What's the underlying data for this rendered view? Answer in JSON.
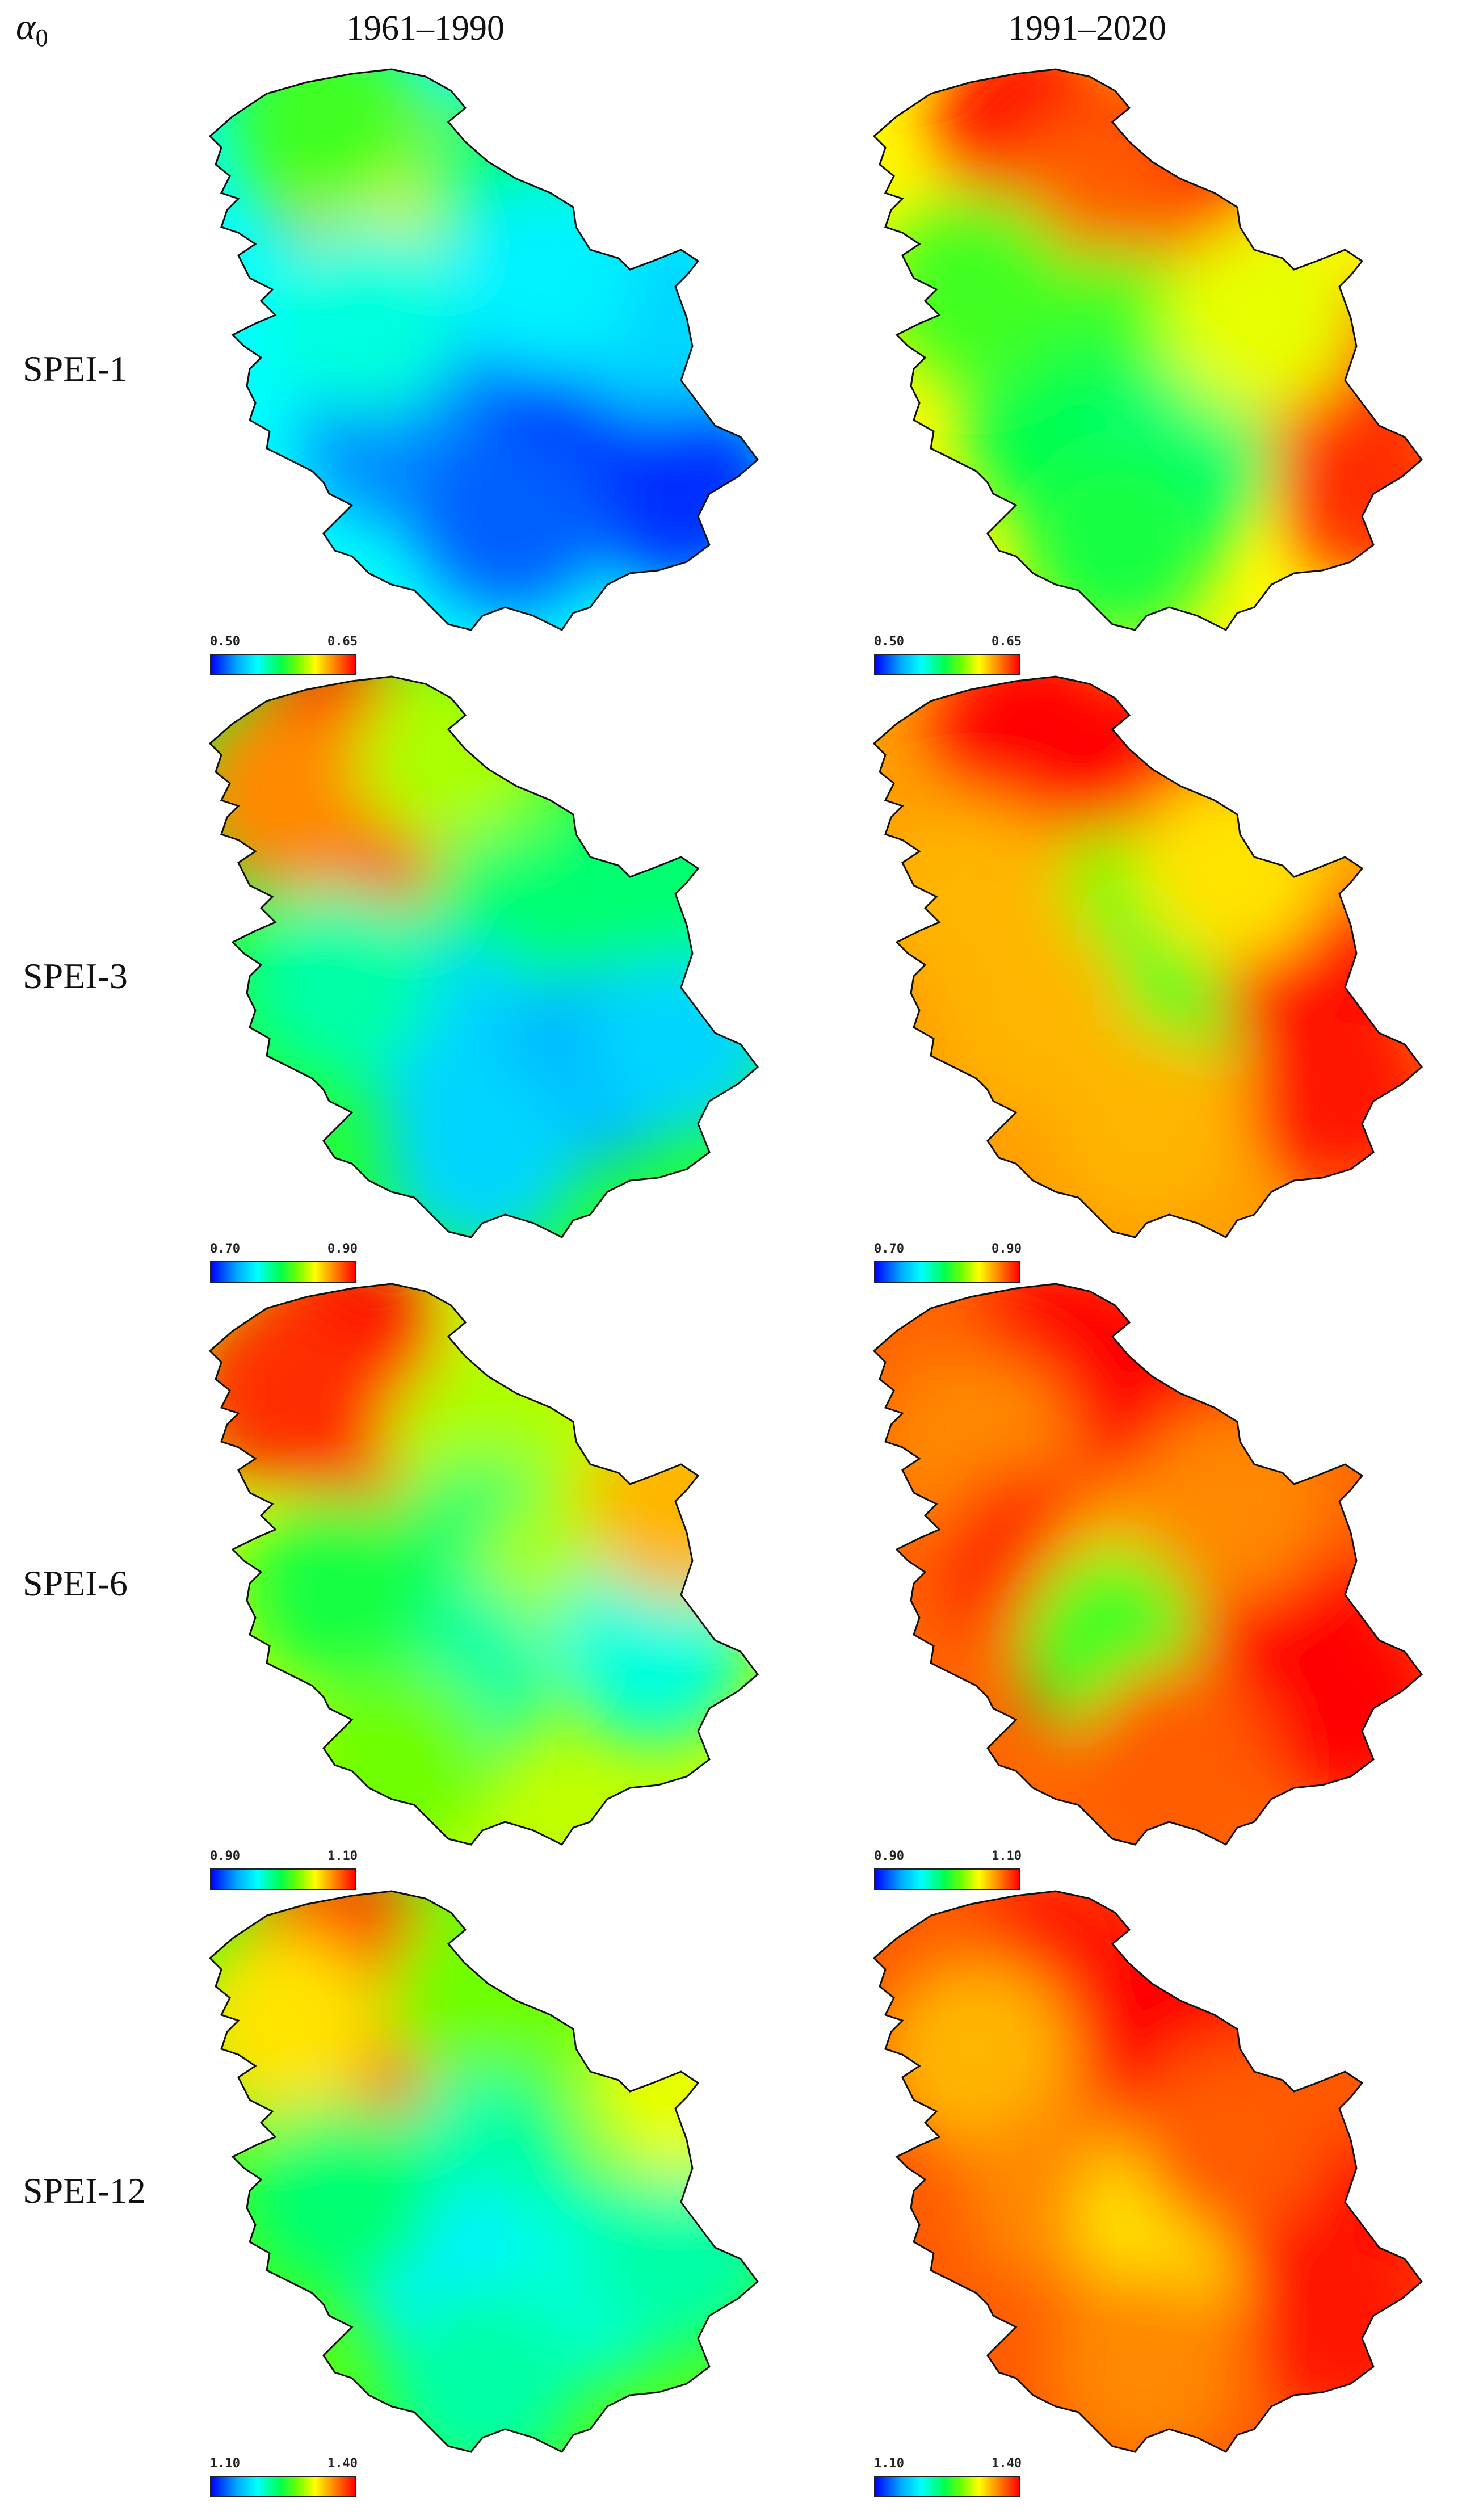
{
  "figure": {
    "corner_symbol": "α",
    "corner_subscript": "0",
    "columns": [
      "1961–1990",
      "1991–2020"
    ],
    "rows": [
      {
        "label": "SPEI-1",
        "legend": {
          "min": "0.50",
          "max": "0.65"
        },
        "panels": [
          {
            "period": "1961–1990",
            "spots": [
              {
                "rx": 0.28,
                "ry": 0.18,
                "v": 0.85
              },
              {
                "rx": 0.4,
                "ry": 0.28,
                "v": 0.75
              },
              {
                "rx": 0.22,
                "ry": 0.1,
                "v": 0.55
              },
              {
                "rx": 0.55,
                "ry": 0.2,
                "v": 0.45
              },
              {
                "rx": 0.5,
                "ry": 0.55,
                "v": 0.05
              },
              {
                "rx": 0.7,
                "ry": 0.6,
                "v": 0.02
              },
              {
                "rx": 0.85,
                "ry": 0.75,
                "v": 0.05
              },
              {
                "rx": 0.35,
                "ry": 0.65,
                "v": 0.15
              },
              {
                "rx": 0.55,
                "ry": 0.8,
                "v": 0.1
              },
              {
                "rx": 0.3,
                "ry": 0.45,
                "v": 0.35
              },
              {
                "rx": 0.8,
                "ry": 0.45,
                "v": 0.25
              },
              {
                "rx": 0.6,
                "ry": 0.38,
                "v": 0.3
              }
            ]
          },
          {
            "period": "1991–2020",
            "spots": [
              {
                "rx": 0.3,
                "ry": 0.12,
                "v": 1.0
              },
              {
                "rx": 0.55,
                "ry": 0.18,
                "v": 0.95
              },
              {
                "rx": 0.4,
                "ry": 0.25,
                "v": 0.9
              },
              {
                "rx": 0.45,
                "ry": 0.5,
                "v": 0.55
              },
              {
                "rx": 0.35,
                "ry": 0.65,
                "v": 0.48
              },
              {
                "rx": 0.55,
                "ry": 0.7,
                "v": 0.45
              },
              {
                "rx": 0.85,
                "ry": 0.55,
                "v": 0.95
              },
              {
                "rx": 0.9,
                "ry": 0.75,
                "v": 0.95
              },
              {
                "rx": 0.7,
                "ry": 0.45,
                "v": 0.7
              },
              {
                "rx": 0.45,
                "ry": 0.85,
                "v": 0.5
              },
              {
                "rx": 0.2,
                "ry": 0.4,
                "v": 0.55
              }
            ]
          }
        ]
      },
      {
        "label": "SPEI-3",
        "legend": {
          "min": "0.70",
          "max": "0.90"
        },
        "panels": [
          {
            "period": "1961–1990",
            "spots": [
              {
                "rx": 0.25,
                "ry": 0.12,
                "v": 1.0
              },
              {
                "rx": 0.3,
                "ry": 0.3,
                "v": 0.95
              },
              {
                "rx": 0.15,
                "ry": 0.22,
                "v": 0.85
              },
              {
                "rx": 0.45,
                "ry": 0.15,
                "v": 0.65
              },
              {
                "rx": 0.55,
                "ry": 0.45,
                "v": 0.45
              },
              {
                "rx": 0.45,
                "ry": 0.65,
                "v": 0.25
              },
              {
                "rx": 0.7,
                "ry": 0.7,
                "v": 0.2
              },
              {
                "rx": 0.85,
                "ry": 0.65,
                "v": 0.25
              },
              {
                "rx": 0.5,
                "ry": 0.85,
                "v": 0.25
              },
              {
                "rx": 0.25,
                "ry": 0.55,
                "v": 0.4
              },
              {
                "rx": 0.8,
                "ry": 0.35,
                "v": 0.45
              }
            ]
          },
          {
            "period": "1991–2020",
            "spots": [
              {
                "rx": 0.3,
                "ry": 0.12,
                "v": 1.0
              },
              {
                "rx": 0.55,
                "ry": 0.18,
                "v": 1.0
              },
              {
                "rx": 0.45,
                "ry": 0.45,
                "v": 0.6
              },
              {
                "rx": 0.55,
                "ry": 0.55,
                "v": 0.55
              },
              {
                "rx": 0.8,
                "ry": 0.55,
                "v": 1.0
              },
              {
                "rx": 0.85,
                "ry": 0.75,
                "v": 0.98
              },
              {
                "rx": 0.3,
                "ry": 0.6,
                "v": 0.8
              },
              {
                "rx": 0.5,
                "ry": 0.8,
                "v": 0.8
              },
              {
                "rx": 0.2,
                "ry": 0.4,
                "v": 0.8
              },
              {
                "rx": 0.65,
                "ry": 0.35,
                "v": 0.75
              }
            ]
          }
        ]
      },
      {
        "label": "SPEI-6",
        "legend": {
          "min": "0.90",
          "max": "1.10"
        },
        "panels": [
          {
            "period": "1961–1990",
            "spots": [
              {
                "rx": 0.25,
                "ry": 0.12,
                "v": 1.0
              },
              {
                "rx": 0.3,
                "ry": 0.25,
                "v": 1.0
              },
              {
                "rx": 0.15,
                "ry": 0.2,
                "v": 0.95
              },
              {
                "rx": 0.5,
                "ry": 0.3,
                "v": 0.65
              },
              {
                "rx": 0.5,
                "ry": 0.5,
                "v": 0.45
              },
              {
                "rx": 0.65,
                "ry": 0.55,
                "v": 0.65
              },
              {
                "rx": 0.8,
                "ry": 0.65,
                "v": 0.35
              },
              {
                "rx": 0.45,
                "ry": 0.7,
                "v": 0.4
              },
              {
                "rx": 0.35,
                "ry": 0.85,
                "v": 0.6
              },
              {
                "rx": 0.85,
                "ry": 0.4,
                "v": 0.8
              },
              {
                "rx": 0.25,
                "ry": 0.55,
                "v": 0.5
              }
            ]
          },
          {
            "period": "1991–2020",
            "spots": [
              {
                "rx": 0.35,
                "ry": 0.15,
                "v": 1.0
              },
              {
                "rx": 0.55,
                "ry": 0.2,
                "v": 1.0
              },
              {
                "rx": 0.2,
                "ry": 0.3,
                "v": 0.85
              },
              {
                "rx": 0.3,
                "ry": 0.5,
                "v": 0.95
              },
              {
                "rx": 0.5,
                "ry": 0.55,
                "v": 0.8
              },
              {
                "rx": 0.45,
                "ry": 0.65,
                "v": 0.55
              },
              {
                "rx": 0.75,
                "ry": 0.6,
                "v": 1.0
              },
              {
                "rx": 0.85,
                "ry": 0.75,
                "v": 1.0
              },
              {
                "rx": 0.55,
                "ry": 0.85,
                "v": 0.9
              },
              {
                "rx": 0.65,
                "ry": 0.4,
                "v": 0.85
              }
            ]
          }
        ]
      },
      {
        "label": "SPEI-12",
        "legend": {
          "min": "1.10",
          "max": "1.40"
        },
        "panels": [
          {
            "period": "1961–1990",
            "spots": [
              {
                "rx": 0.25,
                "ry": 0.12,
                "v": 0.92
              },
              {
                "rx": 0.32,
                "ry": 0.25,
                "v": 0.98
              },
              {
                "rx": 0.15,
                "ry": 0.25,
                "v": 0.75
              },
              {
                "rx": 0.5,
                "ry": 0.2,
                "v": 0.6
              },
              {
                "rx": 0.5,
                "ry": 0.5,
                "v": 0.4
              },
              {
                "rx": 0.45,
                "ry": 0.7,
                "v": 0.3
              },
              {
                "rx": 0.7,
                "ry": 0.7,
                "v": 0.35
              },
              {
                "rx": 0.85,
                "ry": 0.65,
                "v": 0.4
              },
              {
                "rx": 0.5,
                "ry": 0.88,
                "v": 0.4
              },
              {
                "rx": 0.25,
                "ry": 0.55,
                "v": 0.45
              },
              {
                "rx": 0.85,
                "ry": 0.35,
                "v": 0.7
              }
            ]
          },
          {
            "period": "1991–2020",
            "spots": [
              {
                "rx": 0.35,
                "ry": 0.15,
                "v": 0.98
              },
              {
                "rx": 0.55,
                "ry": 0.25,
                "v": 1.0
              },
              {
                "rx": 0.2,
                "ry": 0.3,
                "v": 0.8
              },
              {
                "rx": 0.35,
                "ry": 0.55,
                "v": 0.85
              },
              {
                "rx": 0.55,
                "ry": 0.6,
                "v": 0.75
              },
              {
                "rx": 0.8,
                "ry": 0.6,
                "v": 1.0
              },
              {
                "rx": 0.85,
                "ry": 0.78,
                "v": 0.98
              },
              {
                "rx": 0.5,
                "ry": 0.85,
                "v": 0.85
              },
              {
                "rx": 0.65,
                "ry": 0.45,
                "v": 0.9
              }
            ]
          }
        ]
      }
    ]
  }
}
